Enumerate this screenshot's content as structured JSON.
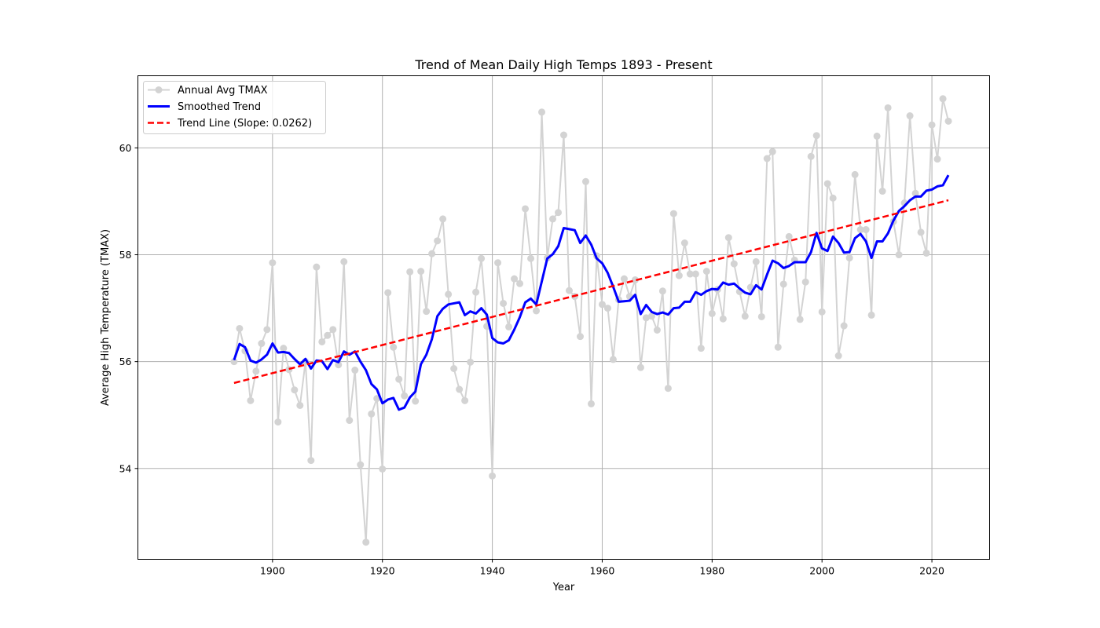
{
  "chart_data": {
    "type": "line",
    "title": "Trend of Mean Daily High Temps 1893 - Present",
    "xlabel": "Year",
    "ylabel": "Average High Temperature (TMAX)",
    "xlim": [
      1875.5,
      2030.5
    ],
    "ylim": [
      52.3,
      61.35
    ],
    "xticks": [
      1900,
      1920,
      1940,
      1960,
      1980,
      2000,
      2020
    ],
    "yticks": [
      54,
      56,
      58,
      60
    ],
    "grid": true,
    "legend_position": "top-left",
    "x": [
      1893,
      1894,
      1895,
      1896,
      1897,
      1898,
      1899,
      1900,
      1901,
      1902,
      1903,
      1904,
      1905,
      1906,
      1907,
      1908,
      1909,
      1910,
      1911,
      1912,
      1913,
      1914,
      1915,
      1916,
      1917,
      1918,
      1919,
      1920,
      1921,
      1922,
      1923,
      1924,
      1925,
      1926,
      1927,
      1928,
      1929,
      1930,
      1931,
      1932,
      1933,
      1934,
      1935,
      1936,
      1937,
      1938,
      1939,
      1940,
      1941,
      1942,
      1943,
      1944,
      1945,
      1946,
      1947,
      1948,
      1949,
      1950,
      1951,
      1952,
      1953,
      1954,
      1955,
      1956,
      1957,
      1958,
      1959,
      1960,
      1961,
      1962,
      1963,
      1964,
      1965,
      1966,
      1967,
      1968,
      1969,
      1970,
      1971,
      1972,
      1973,
      1974,
      1975,
      1976,
      1977,
      1978,
      1979,
      1980,
      1981,
      1982,
      1983,
      1984,
      1985,
      1986,
      1987,
      1988,
      1989,
      1990,
      1991,
      1992,
      1993,
      1994,
      1995,
      1996,
      1997,
      1998,
      1999,
      2000,
      2001,
      2002,
      2003,
      2004,
      2005,
      2006,
      2007,
      2008,
      2009,
      2010,
      2011,
      2012,
      2013,
      2014,
      2015,
      2016,
      2017,
      2018,
      2019,
      2020,
      2021,
      2022,
      2023
    ],
    "series": [
      {
        "name": "Annual Avg TMAX",
        "color": "#d3d3d3",
        "style": "line-with-markers",
        "values": [
          56.0,
          56.62,
          56.2,
          55.27,
          55.82,
          56.34,
          56.6,
          57.85,
          54.87,
          56.25,
          55.85,
          55.47,
          55.18,
          56.0,
          54.15,
          57.77,
          56.37,
          56.49,
          56.6,
          55.94,
          57.87,
          54.9,
          55.84,
          54.07,
          52.62,
          55.02,
          55.31,
          53.99,
          57.29,
          56.27,
          55.67,
          55.36,
          57.68,
          55.26,
          57.69,
          56.94,
          58.02,
          58.26,
          58.67,
          57.26,
          55.87,
          55.48,
          55.27,
          55.99,
          57.3,
          57.93,
          56.66,
          53.86,
          57.85,
          57.09,
          56.65,
          57.55,
          57.46,
          58.86,
          57.93,
          56.95,
          60.67,
          57.94,
          58.67,
          58.79,
          60.24,
          57.33,
          57.22,
          56.47,
          59.37,
          55.21,
          57.98,
          57.07,
          57.0,
          56.04,
          57.16,
          57.55,
          57.22,
          57.53,
          55.89,
          56.82,
          56.85,
          56.59,
          57.32,
          55.5,
          58.77,
          57.61,
          58.22,
          57.64,
          57.64,
          56.25,
          57.69,
          56.9,
          57.35,
          56.8,
          58.32,
          57.83,
          57.31,
          56.85,
          57.39,
          57.87,
          56.84,
          59.8,
          59.93,
          56.27,
          57.45,
          58.34,
          57.9,
          56.79,
          57.49,
          59.84,
          60.23,
          56.93,
          59.33,
          59.06,
          56.11,
          56.67,
          57.94,
          59.5,
          58.47,
          58.47,
          56.87,
          60.22,
          59.19,
          60.75,
          58.62,
          58.0,
          58.97,
          60.6,
          59.15,
          58.42,
          58.03,
          60.43,
          59.79,
          60.92,
          60.5
        ]
      },
      {
        "name": "Smoothed Trend",
        "color": "#0000ff",
        "style": "line",
        "values": [
          56.03,
          56.33,
          56.27,
          56.02,
          55.98,
          56.04,
          56.13,
          56.34,
          56.17,
          56.18,
          56.16,
          56.05,
          55.95,
          56.05,
          55.87,
          56.02,
          56.01,
          55.86,
          56.03,
          55.99,
          56.19,
          56.13,
          56.19,
          56.0,
          55.84,
          55.58,
          55.48,
          55.22,
          55.29,
          55.32,
          55.1,
          55.14,
          55.33,
          55.44,
          55.95,
          56.13,
          56.42,
          56.85,
          56.99,
          57.07,
          57.09,
          57.11,
          56.87,
          56.94,
          56.9,
          57.0,
          56.88,
          56.44,
          56.36,
          56.34,
          56.4,
          56.6,
          56.83,
          57.11,
          57.18,
          57.07,
          57.5,
          57.93,
          58.01,
          58.16,
          58.5,
          58.48,
          58.46,
          58.22,
          58.36,
          58.19,
          57.93,
          57.84,
          57.66,
          57.4,
          57.12,
          57.13,
          57.14,
          57.25,
          56.89,
          57.06,
          56.93,
          56.89,
          56.92,
          56.88,
          57.0,
          57.01,
          57.12,
          57.12,
          57.3,
          57.25,
          57.32,
          57.36,
          57.35,
          57.48,
          57.44,
          57.46,
          57.37,
          57.29,
          57.26,
          57.43,
          57.35,
          57.63,
          57.89,
          57.84,
          57.75,
          57.79,
          57.86,
          57.86,
          57.86,
          58.05,
          58.41,
          58.12,
          58.07,
          58.34,
          58.22,
          58.04,
          58.05,
          58.31,
          58.39,
          58.25,
          57.94,
          58.25,
          58.25,
          58.4,
          58.64,
          58.82,
          58.91,
          59.02,
          59.09,
          59.09,
          59.2,
          59.22,
          59.28,
          59.3,
          59.49
        ]
      },
      {
        "name": "Trend Line (Slope: 0.0262)",
        "color": "#ff0000",
        "style": "dashed",
        "slope": 0.0262,
        "endpoints": [
          [
            1893,
            55.6
          ],
          [
            2023,
            59.02
          ]
        ]
      }
    ]
  }
}
